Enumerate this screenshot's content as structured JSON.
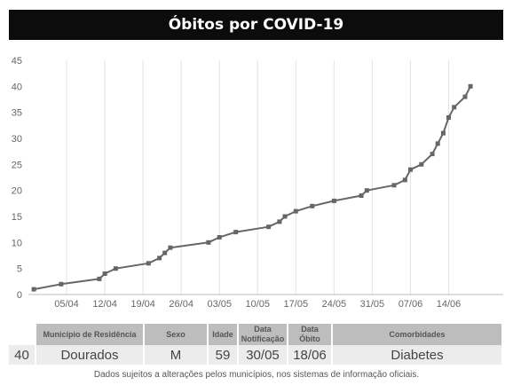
{
  "title": "Óbitos por COVID-19",
  "chart_data": {
    "type": "line",
    "title": "Óbitos por COVID-19",
    "xlabel": "",
    "ylabel": "",
    "ylim": [
      0,
      45
    ],
    "yticks": [
      0,
      5,
      10,
      15,
      20,
      25,
      30,
      35,
      40,
      45
    ],
    "xrange": [
      "2020-03-29",
      "2020-06-24"
    ],
    "xtick_dates": [
      "2020-04-05",
      "2020-04-12",
      "2020-04-19",
      "2020-04-26",
      "2020-05-03",
      "2020-05-10",
      "2020-05-17",
      "2020-05-24",
      "2020-05-31",
      "2020-06-07",
      "2020-06-14"
    ],
    "xtick_labels": [
      "05/04",
      "12/04",
      "19/04",
      "26/04",
      "03/05",
      "10/05",
      "17/05",
      "24/05",
      "31/05",
      "07/06",
      "14/06"
    ],
    "grid": "vertical",
    "color": "#666666",
    "series": [
      {
        "points": [
          [
            "2020-03-30",
            1
          ],
          [
            "2020-04-04",
            2
          ],
          [
            "2020-04-11",
            3
          ],
          [
            "2020-04-12",
            4
          ],
          [
            "2020-04-14",
            5
          ],
          [
            "2020-04-20",
            6
          ],
          [
            "2020-04-22",
            7
          ],
          [
            "2020-04-23",
            8
          ],
          [
            "2020-04-24",
            9
          ],
          [
            "2020-05-01",
            10
          ],
          [
            "2020-05-03",
            11
          ],
          [
            "2020-05-06",
            12
          ],
          [
            "2020-05-12",
            13
          ],
          [
            "2020-05-14",
            14
          ],
          [
            "2020-05-15",
            15
          ],
          [
            "2020-05-17",
            16
          ],
          [
            "2020-05-20",
            17
          ],
          [
            "2020-05-24",
            18
          ],
          [
            "2020-05-29",
            19
          ],
          [
            "2020-05-30",
            20
          ],
          [
            "2020-06-04",
            21
          ],
          [
            "2020-06-06",
            22
          ],
          [
            "2020-06-07",
            24
          ],
          [
            "2020-06-09",
            25
          ],
          [
            "2020-06-11",
            27
          ],
          [
            "2020-06-12",
            29
          ],
          [
            "2020-06-13",
            31
          ],
          [
            "2020-06-14",
            34
          ],
          [
            "2020-06-15",
            36
          ],
          [
            "2020-06-17",
            38
          ],
          [
            "2020-06-18",
            40
          ]
        ]
      }
    ]
  },
  "table": {
    "headers": [
      "Município de Residência",
      "Sexo",
      "Idade",
      "Data Notificação",
      "Data Óbito",
      "Comorbidades"
    ],
    "row": {
      "number": "40",
      "municipio": "Dourados",
      "sexo": "M",
      "idade": "59",
      "notificacao": "30/05",
      "obito": "18/06",
      "comorbidades": "Diabetes"
    }
  },
  "footnote": "Dados sujeitos a alterações pelos municípios, nos sistemas de informação oficiais."
}
